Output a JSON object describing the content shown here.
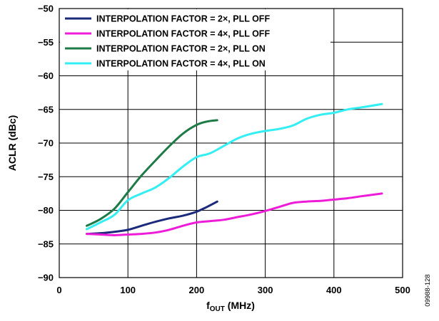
{
  "chart_data": {
    "type": "line",
    "title": "",
    "xlabel_main": "f",
    "xlabel_sub": "OUT",
    "xlabel_unit": " (MHz)",
    "ylabel": "ACLR (dBc)",
    "xlim": [
      0,
      500
    ],
    "ylim": [
      -90,
      -50
    ],
    "x_ticks": [
      0,
      100,
      200,
      300,
      400,
      500
    ],
    "y_ticks": [
      -90,
      -85,
      -80,
      -75,
      -70,
      -65,
      -60,
      -55,
      -50
    ],
    "x_tick_labels": [
      "0",
      "100",
      "200",
      "300",
      "400",
      "500"
    ],
    "y_tick_labels": [
      "−90",
      "−85",
      "−80",
      "−75",
      "−70",
      "−65",
      "−60",
      "−55",
      "−50"
    ],
    "grid": true,
    "legend_position": "top-left",
    "series": [
      {
        "name": "INTERPOLATION FACTOR = 2×, PLL OFF",
        "color": "#1b2a7a",
        "x": [
          40,
          60,
          80,
          100,
          120,
          140,
          160,
          180,
          200,
          215,
          230
        ],
        "y": [
          -83.5,
          -83.4,
          -83.2,
          -82.9,
          -82.3,
          -81.7,
          -81.2,
          -80.8,
          -80.2,
          -79.5,
          -78.7
        ]
      },
      {
        "name": "INTERPOLATION FACTOR = 4×, PLL OFF",
        "color": "#ee1bd8",
        "x": [
          40,
          60,
          80,
          100,
          120,
          140,
          160,
          180,
          200,
          220,
          240,
          260,
          280,
          300,
          320,
          340,
          360,
          380,
          400,
          420,
          440,
          470
        ],
        "y": [
          -83.5,
          -83.6,
          -83.7,
          -83.6,
          -83.5,
          -83.3,
          -82.9,
          -82.3,
          -81.8,
          -81.6,
          -81.4,
          -81.0,
          -80.6,
          -80.1,
          -79.5,
          -78.9,
          -78.7,
          -78.6,
          -78.4,
          -78.2,
          -77.9,
          -77.5
        ]
      },
      {
        "name": "INTERPOLATION FACTOR = 2×, PLL ON",
        "color": "#1e7a46",
        "x": [
          40,
          60,
          80,
          100,
          120,
          140,
          160,
          180,
          200,
          215,
          230
        ],
        "y": [
          -82.3,
          -81.3,
          -79.8,
          -77.3,
          -74.8,
          -72.6,
          -70.5,
          -68.6,
          -67.3,
          -66.8,
          -66.6
        ]
      },
      {
        "name": "INTERPOLATION FACTOR = 4×, PLL ON",
        "color": "#33eef2",
        "x": [
          40,
          60,
          80,
          100,
          120,
          140,
          160,
          180,
          200,
          220,
          240,
          260,
          280,
          300,
          320,
          340,
          360,
          380,
          400,
          420,
          440,
          470
        ],
        "y": [
          -82.8,
          -81.8,
          -80.7,
          -78.5,
          -77.5,
          -76.6,
          -75.2,
          -73.5,
          -72.1,
          -71.5,
          -70.4,
          -69.3,
          -68.6,
          -68.2,
          -67.9,
          -67.4,
          -66.4,
          -65.8,
          -65.5,
          -65.0,
          -64.7,
          -64.2
        ]
      }
    ]
  },
  "figure_id": "09988-128"
}
